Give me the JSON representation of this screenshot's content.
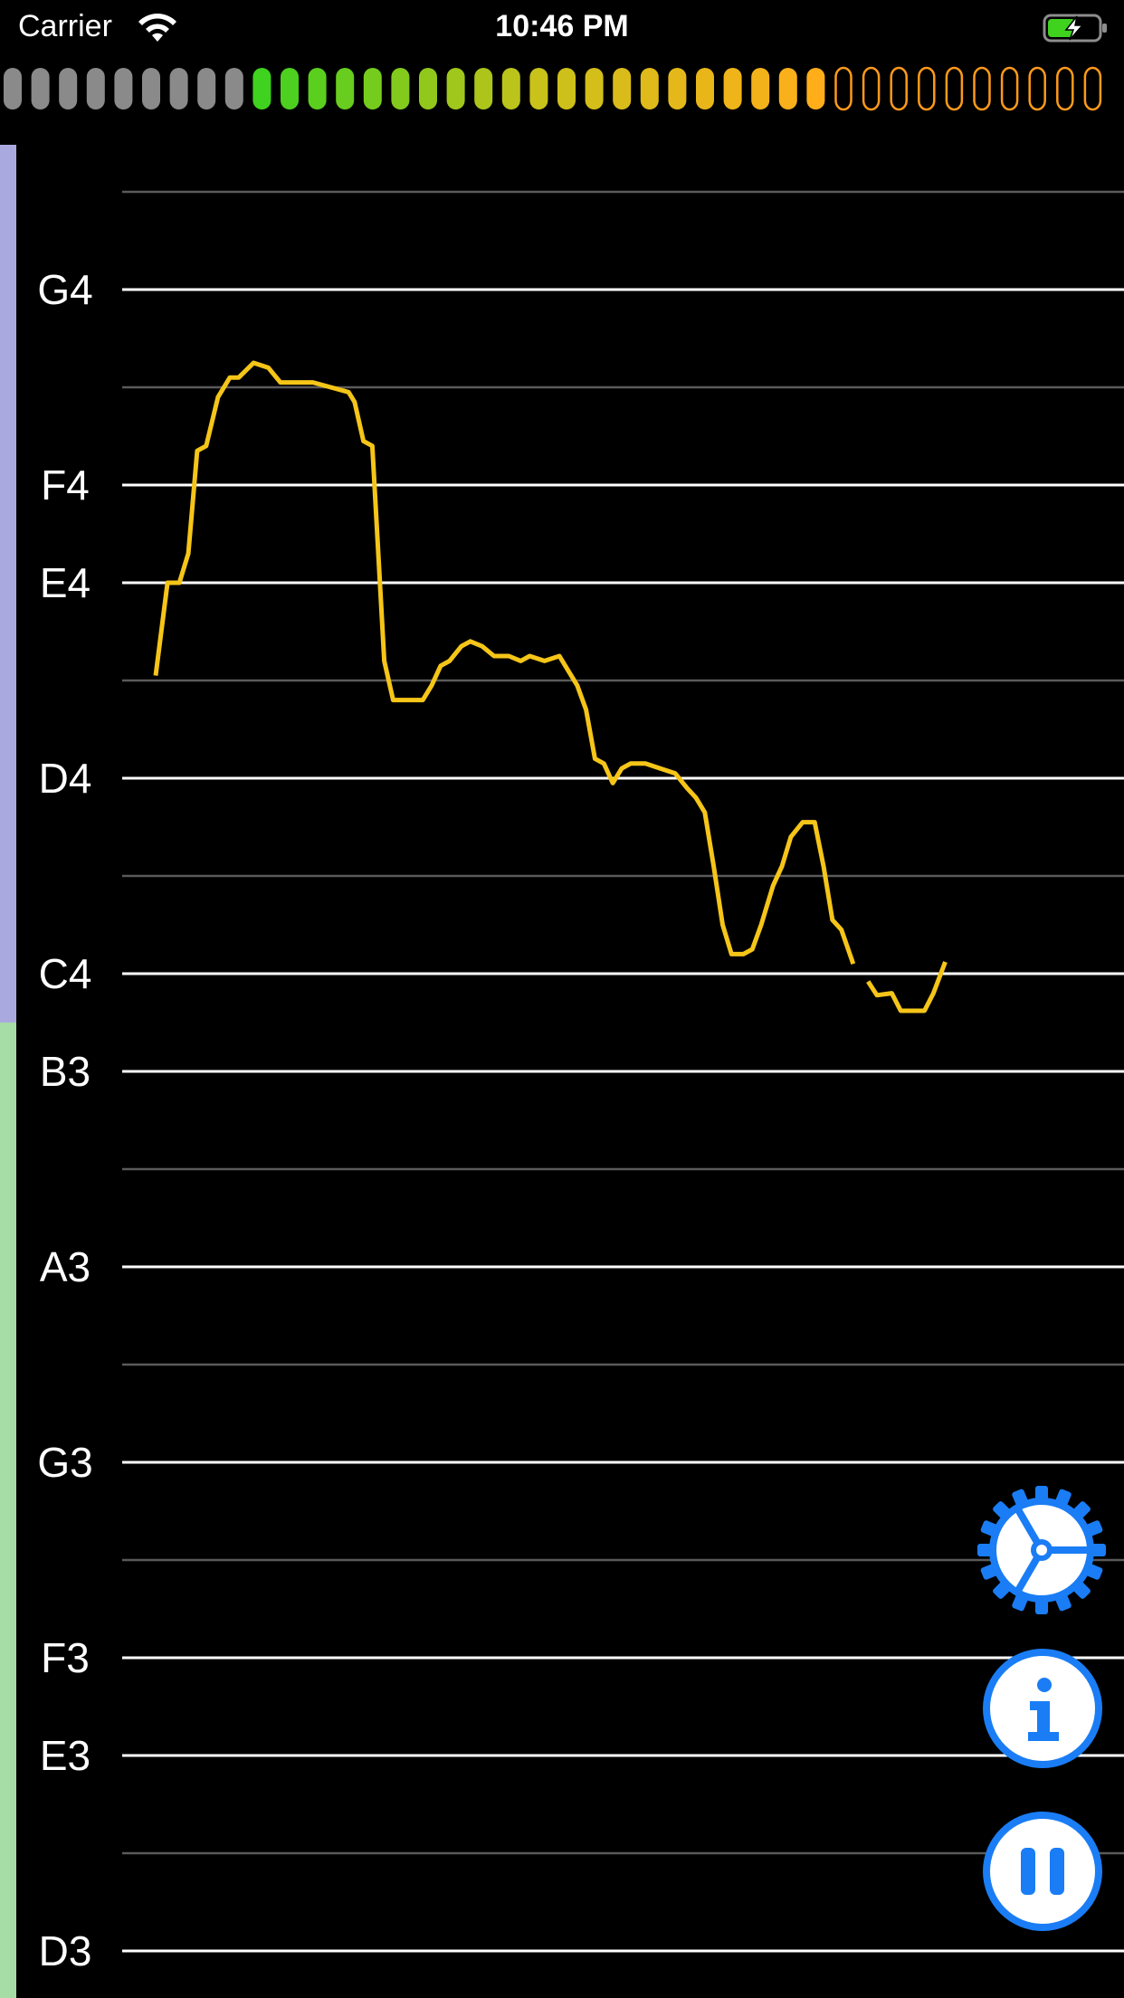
{
  "status_bar": {
    "carrier": "Carrier",
    "time": "10:46 PM",
    "wifi_icon": "wifi-icon",
    "battery_icon": "battery-charging-icon"
  },
  "level_meter": {
    "total_segments": 40,
    "inactive_gray": 9,
    "lit_segments": 21,
    "colors": {
      "gray": "#8a8a8a",
      "green_start": "#3fd21f",
      "yellow_mid": "#c9c21a",
      "orange_end": "#ffae1a",
      "outline": "#ff9a1a"
    }
  },
  "range_bars": {
    "upper_color": "#a9a9e0",
    "lower_color": "#a6dca6"
  },
  "note_ladder": {
    "notes": [
      {
        "label": "",
        "strong": false
      },
      {
        "label": "G4",
        "strong": true
      },
      {
        "label": "",
        "strong": false
      },
      {
        "label": "F4",
        "strong": true
      },
      {
        "label": "E4",
        "strong": true
      },
      {
        "label": "",
        "strong": false
      },
      {
        "label": "D4",
        "strong": true
      },
      {
        "label": "",
        "strong": false
      },
      {
        "label": "C4",
        "strong": true
      },
      {
        "label": "B3",
        "strong": true
      },
      {
        "label": "",
        "strong": false
      },
      {
        "label": "A3",
        "strong": true
      },
      {
        "label": "",
        "strong": false
      },
      {
        "label": "G3",
        "strong": true
      },
      {
        "label": "",
        "strong": false
      },
      {
        "label": "F3",
        "strong": true
      },
      {
        "label": "E3",
        "strong": true
      },
      {
        "label": "",
        "strong": false
      },
      {
        "label": "D3",
        "strong": true
      }
    ],
    "strong_line_color": "#ffffff",
    "weak_line_color": "#5a5a5a"
  },
  "pitch_trace": {
    "color": "#f5c518",
    "segments": [
      [
        [
          0.0,
          3.05
        ],
        [
          0.4,
          4.0
        ],
        [
          0.8,
          4.0
        ],
        [
          1.1,
          4.3
        ],
        [
          1.4,
          5.35
        ],
        [
          1.7,
          5.4
        ],
        [
          2.1,
          5.9
        ],
        [
          2.5,
          6.1
        ],
        [
          2.8,
          6.1
        ],
        [
          3.3,
          6.25
        ],
        [
          3.8,
          6.2
        ],
        [
          4.2,
          6.05
        ],
        [
          5.3,
          6.05
        ],
        [
          5.9,
          6.0
        ],
        [
          6.5,
          5.95
        ],
        [
          6.7,
          5.85
        ],
        [
          7.0,
          5.45
        ],
        [
          7.3,
          5.4
        ],
        [
          7.7,
          3.2
        ],
        [
          8.0,
          2.8
        ],
        [
          9.0,
          2.8
        ],
        [
          9.3,
          2.95
        ],
        [
          9.6,
          3.15
        ],
        [
          9.9,
          3.2
        ],
        [
          10.3,
          3.35
        ],
        [
          10.6,
          3.4
        ],
        [
          11.0,
          3.35
        ],
        [
          11.4,
          3.25
        ],
        [
          11.9,
          3.25
        ],
        [
          12.3,
          3.2
        ],
        [
          12.6,
          3.25
        ],
        [
          13.1,
          3.2
        ],
        [
          13.6,
          3.25
        ],
        [
          13.9,
          3.1
        ],
        [
          14.2,
          2.95
        ],
        [
          14.5,
          2.7
        ],
        [
          14.8,
          2.2
        ],
        [
          15.1,
          2.15
        ],
        [
          15.4,
          1.95
        ],
        [
          15.7,
          2.1
        ],
        [
          16.0,
          2.15
        ],
        [
          16.5,
          2.15
        ],
        [
          17.0,
          2.1
        ],
        [
          17.5,
          2.05
        ],
        [
          17.9,
          1.9
        ],
        [
          18.2,
          1.8
        ],
        [
          18.5,
          1.65
        ],
        [
          18.8,
          1.1
        ],
        [
          19.1,
          0.5
        ],
        [
          19.4,
          0.2
        ],
        [
          19.8,
          0.2
        ],
        [
          20.1,
          0.25
        ],
        [
          20.4,
          0.5
        ],
        [
          20.8,
          0.9
        ],
        [
          21.1,
          1.1
        ],
        [
          21.4,
          1.4
        ],
        [
          21.8,
          1.55
        ],
        [
          22.2,
          1.55
        ],
        [
          22.5,
          1.1
        ],
        [
          22.8,
          0.55
        ],
        [
          23.1,
          0.45
        ],
        [
          23.5,
          0.1
        ]
      ],
      [
        [
          24.0,
          -0.08
        ],
        [
          24.3,
          -0.22
        ],
        [
          24.8,
          -0.2
        ],
        [
          25.1,
          -0.38
        ],
        [
          25.9,
          -0.38
        ],
        [
          26.2,
          -0.2
        ],
        [
          26.6,
          0.12
        ]
      ]
    ]
  },
  "buttons": {
    "settings": "settings-gear-icon",
    "info": "info-icon",
    "pause": "pause-icon",
    "accent": "#1a7df5"
  }
}
